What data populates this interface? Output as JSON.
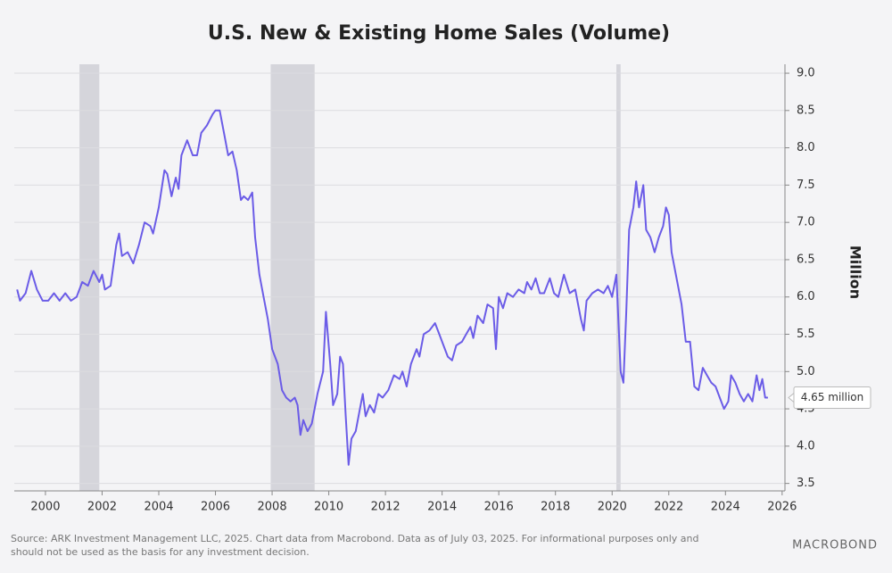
{
  "chart_data": {
    "type": "line",
    "title": "U.S. New & Existing Home Sales (Volume)",
    "y_axis_label": "Million",
    "annotation": "4.65 million",
    "source": "Source: ARK Investment Management LLC, 2025. Chart data from Macrobond. Data as of July 03, 2025. For informational purposes only and",
    "source_line2": "should not be used as the basis for any investment decision.",
    "brand": "MACROBOND",
    "shaded_periods": [
      [
        2001.2,
        2001.9
      ],
      [
        2007.95,
        2009.5
      ],
      [
        2020.15,
        2020.3
      ]
    ],
    "xlim": [
      1998.9,
      2026.1
    ],
    "xticks": [
      2000,
      2002,
      2004,
      2006,
      2008,
      2010,
      2012,
      2014,
      2016,
      2018,
      2020,
      2022,
      2024,
      2026
    ],
    "ylim": [
      3.4,
      9.12
    ],
    "yticks": [
      3.5,
      {
        "value": 4,
        "label": "4.0"
      },
      4.5,
      {
        "value": 5,
        "label": "5.0"
      },
      5.5,
      {
        "value": 6,
        "label": "6.0"
      },
      6.5,
      {
        "value": 7,
        "label": "7.0"
      },
      7.5,
      {
        "value": 8,
        "label": "8.0"
      },
      8.5,
      {
        "value": 9,
        "label": "9.0"
      }
    ],
    "grid": true,
    "series": [
      {
        "name": "Home Sales",
        "color": "#6b5ce7",
        "x": [
          1999.0,
          1999.1,
          1999.3,
          1999.5,
          1999.7,
          1999.9,
          2000.1,
          2000.3,
          2000.5,
          2000.7,
          2000.9,
          2001.1,
          2001.3,
          2001.5,
          2001.7,
          2001.9,
          2002.0,
          2002.1,
          2002.3,
          2002.5,
          2002.6,
          2002.7,
          2002.9,
          2003.1,
          2003.3,
          2003.5,
          2003.7,
          2003.8,
          2004.0,
          2004.2,
          2004.3,
          2004.45,
          2004.6,
          2004.7,
          2004.8,
          2005.0,
          2005.2,
          2005.35,
          2005.5,
          2005.7,
          2005.9,
          2006.0,
          2006.15,
          2006.3,
          2006.45,
          2006.6,
          2006.75,
          2006.9,
          2007.0,
          2007.15,
          2007.3,
          2007.4,
          2007.55,
          2007.7,
          2007.85,
          2008.0,
          2008.2,
          2008.35,
          2008.5,
          2008.65,
          2008.8,
          2008.9,
          2009.0,
          2009.1,
          2009.25,
          2009.4,
          2009.6,
          2009.8,
          2009.9,
          2010.05,
          2010.15,
          2010.3,
          2010.4,
          2010.5,
          2010.6,
          2010.7,
          2010.8,
          2010.95,
          2011.1,
          2011.2,
          2011.3,
          2011.45,
          2011.6,
          2011.75,
          2011.9,
          2012.1,
          2012.3,
          2012.5,
          2012.6,
          2012.75,
          2012.9,
          2013.1,
          2013.2,
          2013.35,
          2013.55,
          2013.75,
          2013.9,
          2014.05,
          2014.2,
          2014.35,
          2014.5,
          2014.7,
          2014.85,
          2015.0,
          2015.1,
          2015.25,
          2015.45,
          2015.6,
          2015.8,
          2015.9,
          2016.0,
          2016.15,
          2016.3,
          2016.5,
          2016.7,
          2016.9,
          2017.0,
          2017.15,
          2017.3,
          2017.45,
          2017.6,
          2017.8,
          2017.95,
          2018.1,
          2018.3,
          2018.5,
          2018.7,
          2018.9,
          2019.0,
          2019.1,
          2019.3,
          2019.5,
          2019.7,
          2019.85,
          2020.0,
          2020.15,
          2020.3,
          2020.4,
          2020.5,
          2020.6,
          2020.75,
          2020.85,
          2020.95,
          2021.1,
          2021.2,
          2021.35,
          2021.5,
          2021.65,
          2021.8,
          2021.9,
          2022.0,
          2022.1,
          2022.25,
          2022.45,
          2022.6,
          2022.75,
          2022.9,
          2023.05,
          2023.2,
          2023.35,
          2023.5,
          2023.65,
          2023.8,
          2023.95,
          2024.1,
          2024.2,
          2024.35,
          2024.5,
          2024.65,
          2024.8,
          2024.95,
          2025.1,
          2025.2,
          2025.3,
          2025.4,
          2025.5
        ],
        "values": [
          6.1,
          5.95,
          6.05,
          6.35,
          6.1,
          5.95,
          5.95,
          6.05,
          5.95,
          6.05,
          5.95,
          6.0,
          6.2,
          6.15,
          6.35,
          6.2,
          6.3,
          6.1,
          6.15,
          6.7,
          6.85,
          6.55,
          6.6,
          6.45,
          6.7,
          7.0,
          6.95,
          6.85,
          7.2,
          7.7,
          7.65,
          7.35,
          7.6,
          7.45,
          7.9,
          8.1,
          7.9,
          7.9,
          8.2,
          8.3,
          8.45,
          8.5,
          8.5,
          8.2,
          7.9,
          7.95,
          7.7,
          7.3,
          7.35,
          7.3,
          7.4,
          6.8,
          6.3,
          6.0,
          5.7,
          5.3,
          5.1,
          4.75,
          4.65,
          4.6,
          4.65,
          4.55,
          4.15,
          4.35,
          4.2,
          4.3,
          4.7,
          5.0,
          5.8,
          5.1,
          4.55,
          4.7,
          5.2,
          5.1,
          4.4,
          3.75,
          4.1,
          4.2,
          4.5,
          4.7,
          4.4,
          4.55,
          4.45,
          4.7,
          4.65,
          4.75,
          4.95,
          4.9,
          5.0,
          4.8,
          5.1,
          5.3,
          5.2,
          5.5,
          5.55,
          5.65,
          5.5,
          5.35,
          5.2,
          5.15,
          5.35,
          5.4,
          5.5,
          5.6,
          5.45,
          5.75,
          5.65,
          5.9,
          5.85,
          5.3,
          6.0,
          5.85,
          6.05,
          6.0,
          6.1,
          6.05,
          6.2,
          6.1,
          6.25,
          6.05,
          6.05,
          6.25,
          6.05,
          6.0,
          6.3,
          6.05,
          6.1,
          5.7,
          5.55,
          5.95,
          6.05,
          6.1,
          6.05,
          6.15,
          6.0,
          6.3,
          5.0,
          4.85,
          5.8,
          6.9,
          7.2,
          7.55,
          7.2,
          7.5,
          6.9,
          6.8,
          6.6,
          6.8,
          6.95,
          7.2,
          7.1,
          6.6,
          6.3,
          5.9,
          5.4,
          5.4,
          4.8,
          4.75,
          5.05,
          4.95,
          4.85,
          4.8,
          4.65,
          4.5,
          4.6,
          4.95,
          4.85,
          4.7,
          4.6,
          4.7,
          4.6,
          4.95,
          4.75,
          4.9,
          4.65,
          4.65
        ]
      }
    ]
  }
}
